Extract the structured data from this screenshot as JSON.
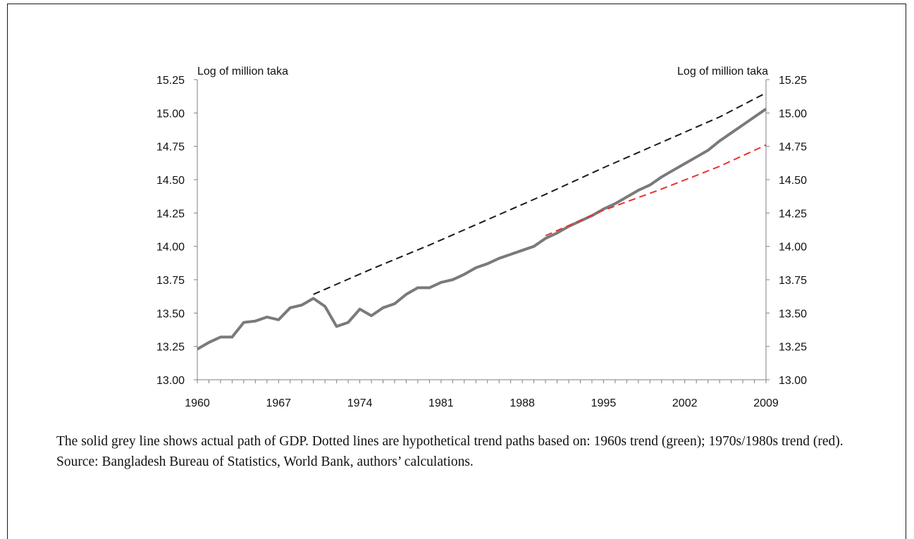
{
  "chart_data": {
    "type": "line",
    "y_unit_left": "Log of million taka",
    "y_unit_right": "Log of million taka",
    "ylim": [
      13.0,
      15.25
    ],
    "xlim": [
      1960,
      2009
    ],
    "y_ticks": [
      "13.00",
      "13.25",
      "13.50",
      "13.75",
      "14.00",
      "14.25",
      "14.50",
      "14.75",
      "15.00",
      "15.25"
    ],
    "x_ticks": [
      "1960",
      "1967",
      "1974",
      "1981",
      "1988",
      "1995",
      "2002",
      "2009"
    ],
    "grid": false,
    "legend": "none",
    "series": [
      {
        "color": "#7a7a7a",
        "style": "solid",
        "x": [
          1960,
          1961,
          1962,
          1963,
          1964,
          1965,
          1966,
          1967,
          1968,
          1969,
          1970,
          1971,
          1972,
          1973,
          1974,
          1975,
          1976,
          1977,
          1978,
          1979,
          1980,
          1981,
          1982,
          1983,
          1984,
          1985,
          1986,
          1987,
          1988,
          1989,
          1990,
          1991,
          1992,
          1993,
          1994,
          1995,
          1996,
          1997,
          1998,
          1999,
          2000,
          2001,
          2002,
          2003,
          2004,
          2005,
          2006,
          2007,
          2008,
          2009
        ],
        "y": [
          13.23,
          13.28,
          13.32,
          13.32,
          13.43,
          13.44,
          13.47,
          13.45,
          13.54,
          13.56,
          13.61,
          13.55,
          13.4,
          13.43,
          13.53,
          13.48,
          13.54,
          13.57,
          13.64,
          13.69,
          13.69,
          13.73,
          13.75,
          13.79,
          13.84,
          13.87,
          13.91,
          13.94,
          13.97,
          14.0,
          14.06,
          14.1,
          14.15,
          14.19,
          14.23,
          14.28,
          14.32,
          14.37,
          14.42,
          14.46,
          14.52,
          14.57,
          14.62,
          14.67,
          14.72,
          14.79,
          14.85,
          14.91,
          14.97,
          15.03
        ]
      },
      {
        "color": "#1a1a1a",
        "style": "dashed",
        "x": [
          1970,
          1975,
          1980,
          1985,
          1990,
          1995,
          2000,
          2005,
          2009
        ],
        "y": [
          13.64,
          13.83,
          14.01,
          14.2,
          14.39,
          14.59,
          14.78,
          14.97,
          15.15
        ]
      },
      {
        "color": "#e8322d",
        "style": "dashed",
        "x": [
          1990,
          1995,
          2000,
          2005,
          2009
        ],
        "y": [
          14.08,
          14.27,
          14.43,
          14.6,
          14.76
        ]
      }
    ]
  },
  "caption": {
    "line1": "The solid grey line shows actual path of GDP.  Dotted lines are hypothetical trend paths based on: 1960s trend (green); 1970s/1980s trend (red).",
    "line2": "Source: Bangladesh Bureau of Statistics, World Bank, authors’ calculations."
  }
}
